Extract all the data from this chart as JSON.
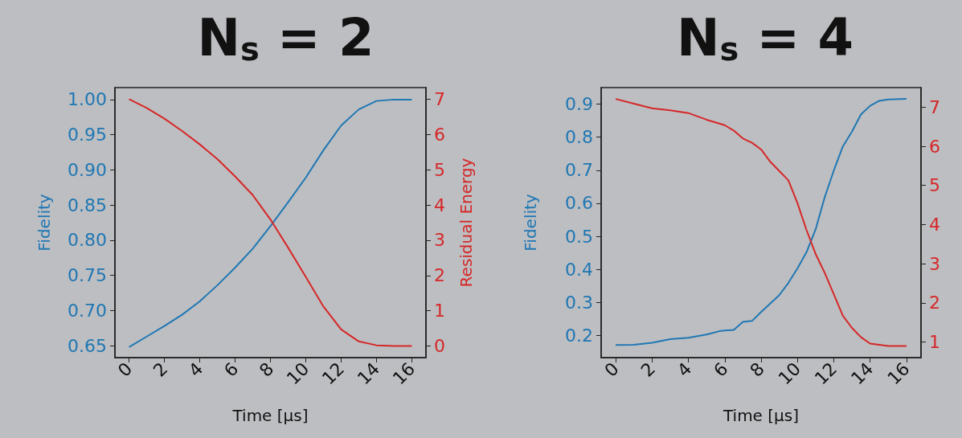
{
  "chart_data": [
    {
      "type": "line",
      "title": "N$_{s}$ = 2",
      "xlabel": "Time [μs]",
      "ylabel": "Fidelity",
      "y2label": "Residual Energy",
      "marker": "none",
      "xlim": [
        -0.8,
        16.8
      ],
      "xticks": [
        0,
        2,
        4,
        6,
        8,
        10,
        12,
        14,
        16
      ],
      "ylim": [
        0.633,
        1.017
      ],
      "yticks": [
        {
          "value": 0.65,
          "label": "0.65"
        },
        {
          "value": 0.7,
          "label": "0.70"
        },
        {
          "value": 0.75,
          "label": "0.75"
        },
        {
          "value": 0.8,
          "label": "0.80"
        },
        {
          "value": 0.85,
          "label": "0.85"
        },
        {
          "value": 0.9,
          "label": "0.90"
        },
        {
          "value": 0.95,
          "label": "0.95"
        },
        {
          "value": 1,
          "label": "1.00"
        }
      ],
      "y2lim": [
        -0.33,
        7.33
      ],
      "y2ticks": [
        0,
        1,
        2,
        3,
        4,
        5,
        6,
        7
      ],
      "series": [
        {
          "color": "#1f77b4",
          "x": [
            0,
            1,
            2,
            3,
            4,
            5,
            6,
            7,
            8,
            9,
            10,
            11,
            12,
            13,
            14,
            15,
            16
          ],
          "values": [
            0.648,
            0.663,
            0.678,
            0.694,
            0.713,
            0.736,
            0.761,
            0.788,
            0.82,
            0.854,
            0.889,
            0.928,
            0.963,
            0.986,
            0.998,
            1.0,
            1.0
          ]
        },
        {
          "color": "#d62728",
          "axis": "y2",
          "x": [
            0,
            1,
            2,
            3,
            4,
            5,
            6,
            7,
            8,
            9,
            10,
            11,
            12,
            13,
            14,
            15,
            16
          ],
          "values": [
            7.0,
            6.75,
            6.45,
            6.1,
            5.72,
            5.3,
            4.81,
            4.28,
            3.59,
            2.79,
            1.96,
            1.12,
            0.47,
            0.13,
            0.02,
            0,
            0
          ]
        }
      ]
    },
    {
      "type": "line",
      "title": "N$_{s}$ = 4",
      "xlabel": "Time [μs]",
      "ylabel": "Fidelity",
      "marker": "none",
      "xlim": [
        -0.8,
        16.8
      ],
      "xticks": [
        0,
        2,
        4,
        6,
        8,
        10,
        12,
        14,
        16
      ],
      "ylim": [
        0.133,
        0.95
      ],
      "yticks": [
        0.2,
        0.3,
        0.4,
        0.5,
        0.6,
        0.7,
        0.8,
        0.9
      ],
      "y2lim": [
        0.6,
        7.5
      ],
      "y2ticks": [
        1,
        2,
        3,
        4,
        5,
        6,
        7
      ],
      "series": [
        {
          "color": "#1f77b4",
          "x": [
            0,
            1,
            2,
            3,
            4,
            5,
            5.7,
            6,
            6.5,
            7,
            7.5,
            8,
            9,
            9.5,
            10,
            10.5,
            11,
            11.5,
            12,
            12.5,
            13,
            13.5,
            14,
            14.5,
            15,
            16
          ],
          "values": [
            0.171,
            0.172,
            0.178,
            0.189,
            0.193,
            0.203,
            0.213,
            0.215,
            0.217,
            0.241,
            0.244,
            0.271,
            0.322,
            0.359,
            0.403,
            0.452,
            0.521,
            0.618,
            0.699,
            0.772,
            0.817,
            0.869,
            0.895,
            0.91,
            0.914,
            0.916
          ]
        },
        {
          "color": "#d62728",
          "axis": "y2",
          "x": [
            0,
            1,
            2,
            3,
            4,
            5,
            6,
            6.5,
            7,
            7.5,
            8,
            8.5,
            9,
            9.5,
            10,
            10.5,
            11,
            11.5,
            12,
            12.5,
            13,
            13.5,
            14,
            14.5,
            15,
            16
          ],
          "values": [
            7.21,
            7.09,
            6.97,
            6.92,
            6.85,
            6.68,
            6.54,
            6.4,
            6.2,
            6.09,
            5.92,
            5.61,
            5.37,
            5.13,
            4.55,
            3.86,
            3.25,
            2.77,
            2.22,
            1.67,
            1.36,
            1.12,
            0.96,
            0.93,
            0.9,
            0.9
          ]
        }
      ]
    }
  ]
}
